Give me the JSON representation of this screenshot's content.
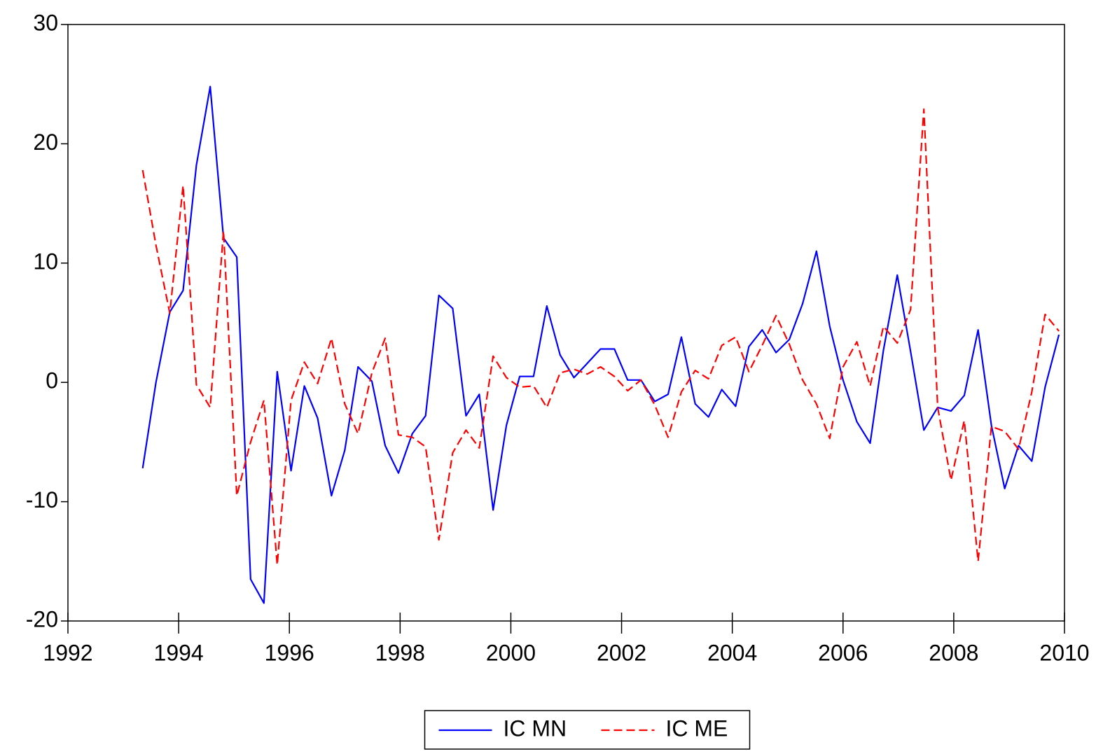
{
  "chart_data": {
    "type": "line",
    "x": [
      1993.35,
      1993.59,
      1993.84,
      1994.08,
      1994.32,
      1994.57,
      1994.81,
      1995.05,
      1995.3,
      1995.54,
      1995.78,
      1996.03,
      1996.27,
      1996.51,
      1996.76,
      1997.0,
      1997.24,
      1997.49,
      1997.73,
      1997.97,
      1998.22,
      1998.46,
      1998.7,
      1998.95,
      1999.19,
      1999.43,
      1999.68,
      1999.92,
      2000.16,
      2000.41,
      2000.65,
      2000.89,
      2001.14,
      2001.38,
      2001.62,
      2001.87,
      2002.11,
      2002.35,
      2002.6,
      2002.84,
      2003.08,
      2003.33,
      2003.57,
      2003.81,
      2004.06,
      2004.3,
      2004.54,
      2004.79,
      2005.03,
      2005.27,
      2005.52,
      2005.76,
      2006.0,
      2006.25,
      2006.49,
      2006.73,
      2006.98,
      2007.22,
      2007.46,
      2007.71,
      2007.95,
      2008.19,
      2008.44,
      2008.68,
      2008.92,
      2009.17,
      2009.41,
      2009.65,
      2009.9
    ],
    "series": [
      {
        "name": "IC MN",
        "color": "#0000ff",
        "dash": false,
        "values": [
          -7.2,
          0,
          5.9,
          7.7,
          18.2,
          24.8,
          12.1,
          10.5,
          -16.5,
          -18.5,
          0.9,
          -7.4,
          -0.3,
          -3,
          -9.5,
          -5.7,
          1.3,
          0.1,
          -5.3,
          -7.6,
          -4.3,
          -2.8,
          7.3,
          6.2,
          -2.8,
          -1.0,
          -10.7,
          -3.6,
          0.5,
          0.5,
          6.4,
          2.3,
          0.4,
          1.6,
          2.8,
          2.8,
          0.2,
          0.2,
          -1.6,
          -1.0,
          3.8,
          -1.8,
          -2.9,
          -0.6,
          -2.0,
          3.0,
          4.4,
          2.5,
          3.6,
          6.6,
          11.0,
          4.7,
          0.2,
          -3.3,
          -5.1,
          2.7,
          9.0,
          2.6,
          -4.0,
          -2.1,
          -2.4,
          -1.1,
          4.4,
          -3.6,
          -8.9,
          -5.3,
          -6.6,
          -0.4,
          4.0
        ]
      },
      {
        "name": "IC ME",
        "color": "#ff0000",
        "dash": true,
        "values": [
          17.8,
          11.5,
          5.8,
          16.5,
          -0.2,
          -2.1,
          12.7,
          -9.5,
          -5.0,
          -1.5,
          -15.3,
          -1.5,
          1.7,
          -0.1,
          3.7,
          -1.8,
          -4.3,
          0.8,
          3.7,
          -4.4,
          -4.6,
          -5.4,
          -13.2,
          -5.9,
          -4.0,
          -5.5,
          2.2,
          0.4,
          -0.4,
          -0.3,
          -2.1,
          0.8,
          1.1,
          0.7,
          1.3,
          0.5,
          -0.7,
          0.2,
          -1.9,
          -4.6,
          -0.8,
          1.0,
          0.3,
          3.1,
          3.8,
          0.9,
          3.1,
          5.6,
          3.2,
          0.2,
          -1.8,
          -4.7,
          1.3,
          3.4,
          -0.3,
          4.7,
          3.3,
          6.1,
          22.9,
          -2.1,
          -8.2,
          -3.2,
          -15.0,
          -3.7,
          -4.1,
          -5.6,
          -0.8,
          5.7,
          4.3
        ]
      }
    ],
    "xlim": [
      1992,
      2010
    ],
    "xticks": [
      1992,
      1994,
      1996,
      1998,
      2000,
      2002,
      2004,
      2006,
      2008,
      2010
    ],
    "ylim": [
      -20,
      30
    ],
    "yticks": [
      -20,
      -10,
      0,
      10,
      20,
      30
    ],
    "grid": false,
    "legend": "bottom"
  }
}
